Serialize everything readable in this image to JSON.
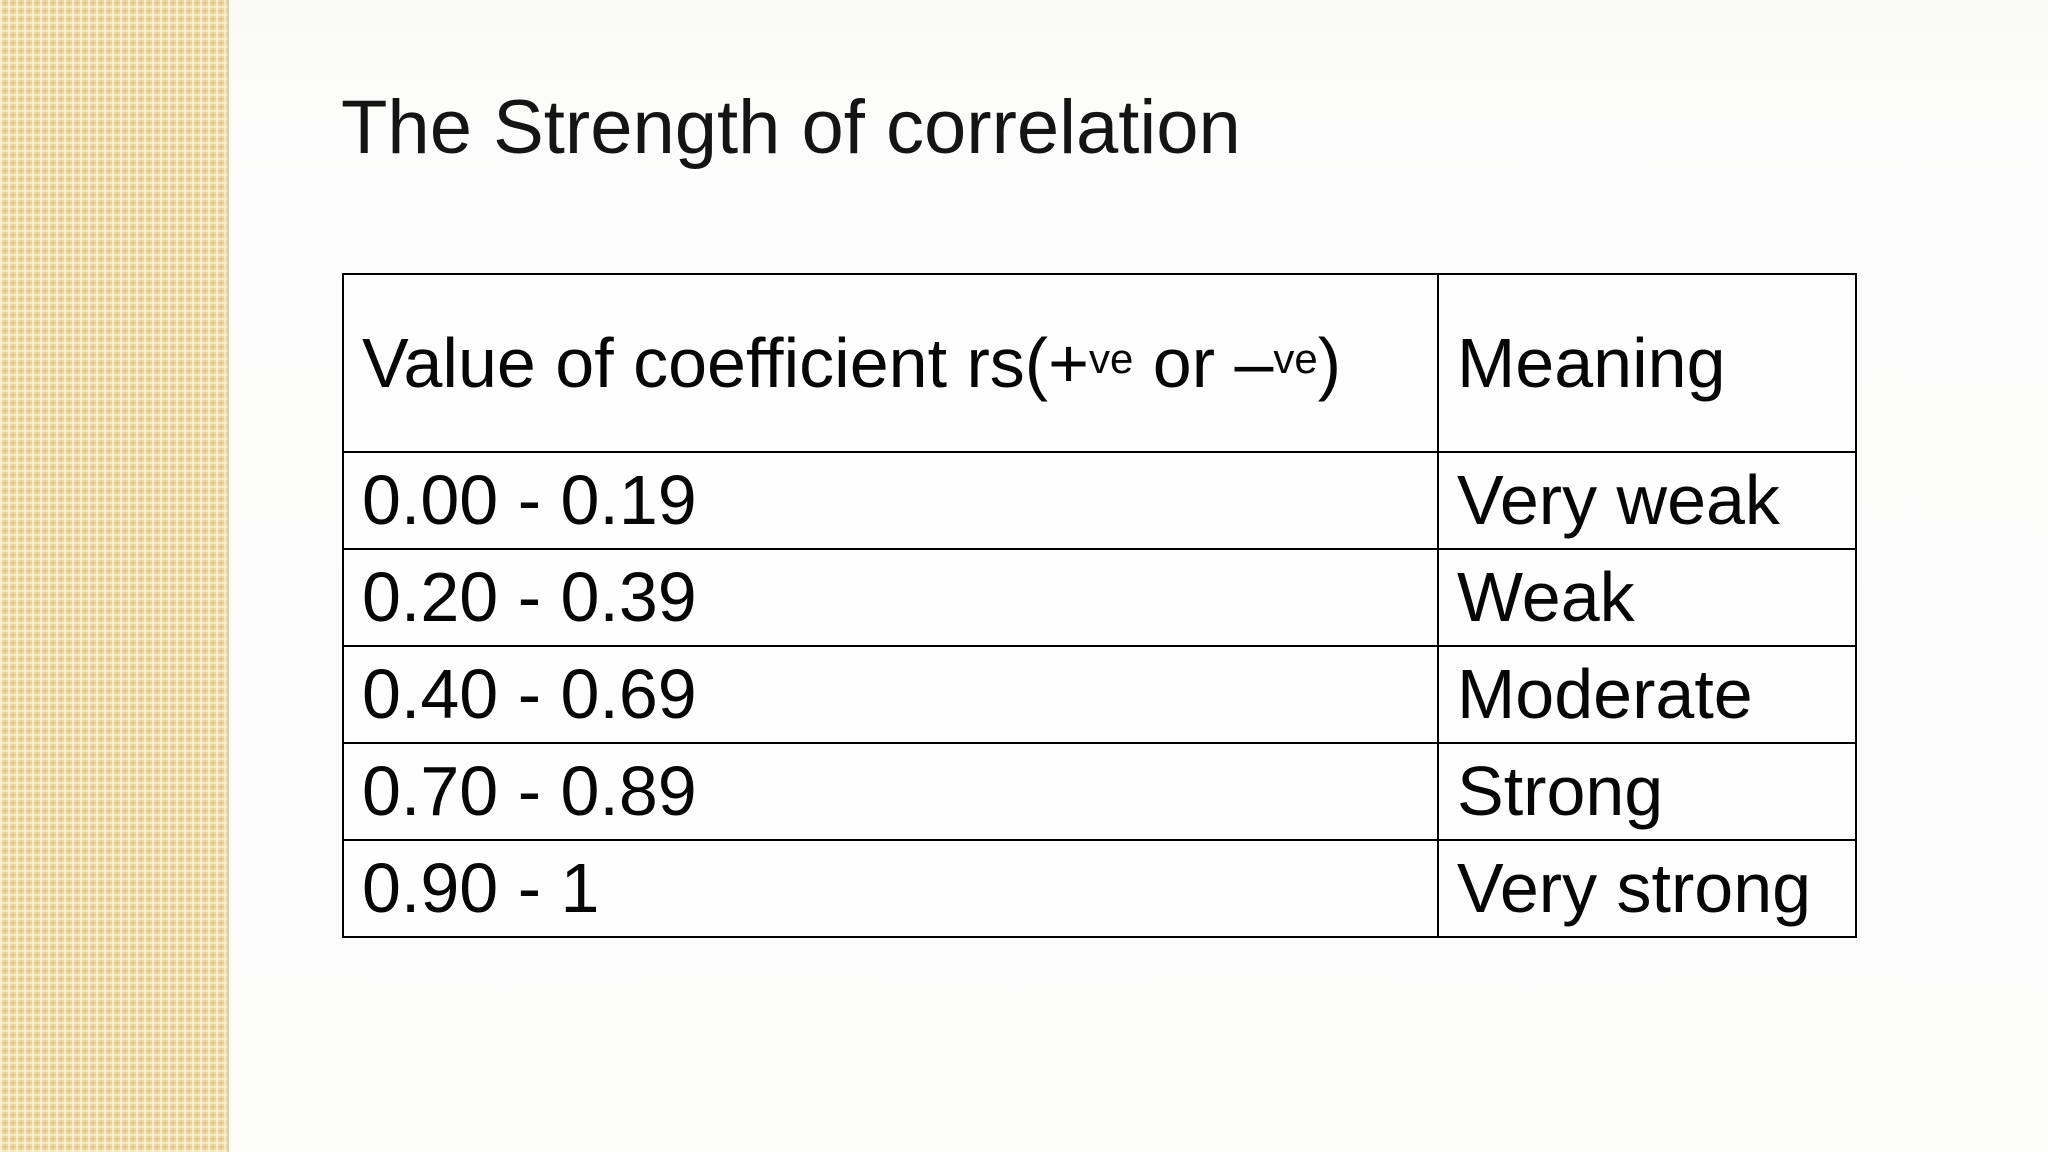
{
  "slide": {
    "title": "The Strength of correlation",
    "table": {
      "header": {
        "col1": {
          "prefix": "Value of coefficient rs(+",
          "sup1": "ve",
          "middle": " or –",
          "sup2": "ve",
          "suffix": ")"
        },
        "col2": "Meaning"
      },
      "rows": [
        {
          "value": "0.00 - 0.19",
          "meaning": "Very weak"
        },
        {
          "value": "0.20 - 0.39",
          "meaning": "Weak"
        },
        {
          "value": "0.40 - 0.69",
          "meaning": "Moderate"
        },
        {
          "value": "0.70 - 0.89",
          "meaning": "Strong"
        },
        {
          "value": "0.90 - 1",
          "meaning": "Very strong"
        }
      ]
    },
    "colors": {
      "sidebar_base": "#eedaa4",
      "sidebar_light_weave": "#fff8e4",
      "sidebar_dark_weave": "#c6a25c",
      "background": "#fcfcfb",
      "table_border": "#000000",
      "text": "#060606"
    }
  }
}
